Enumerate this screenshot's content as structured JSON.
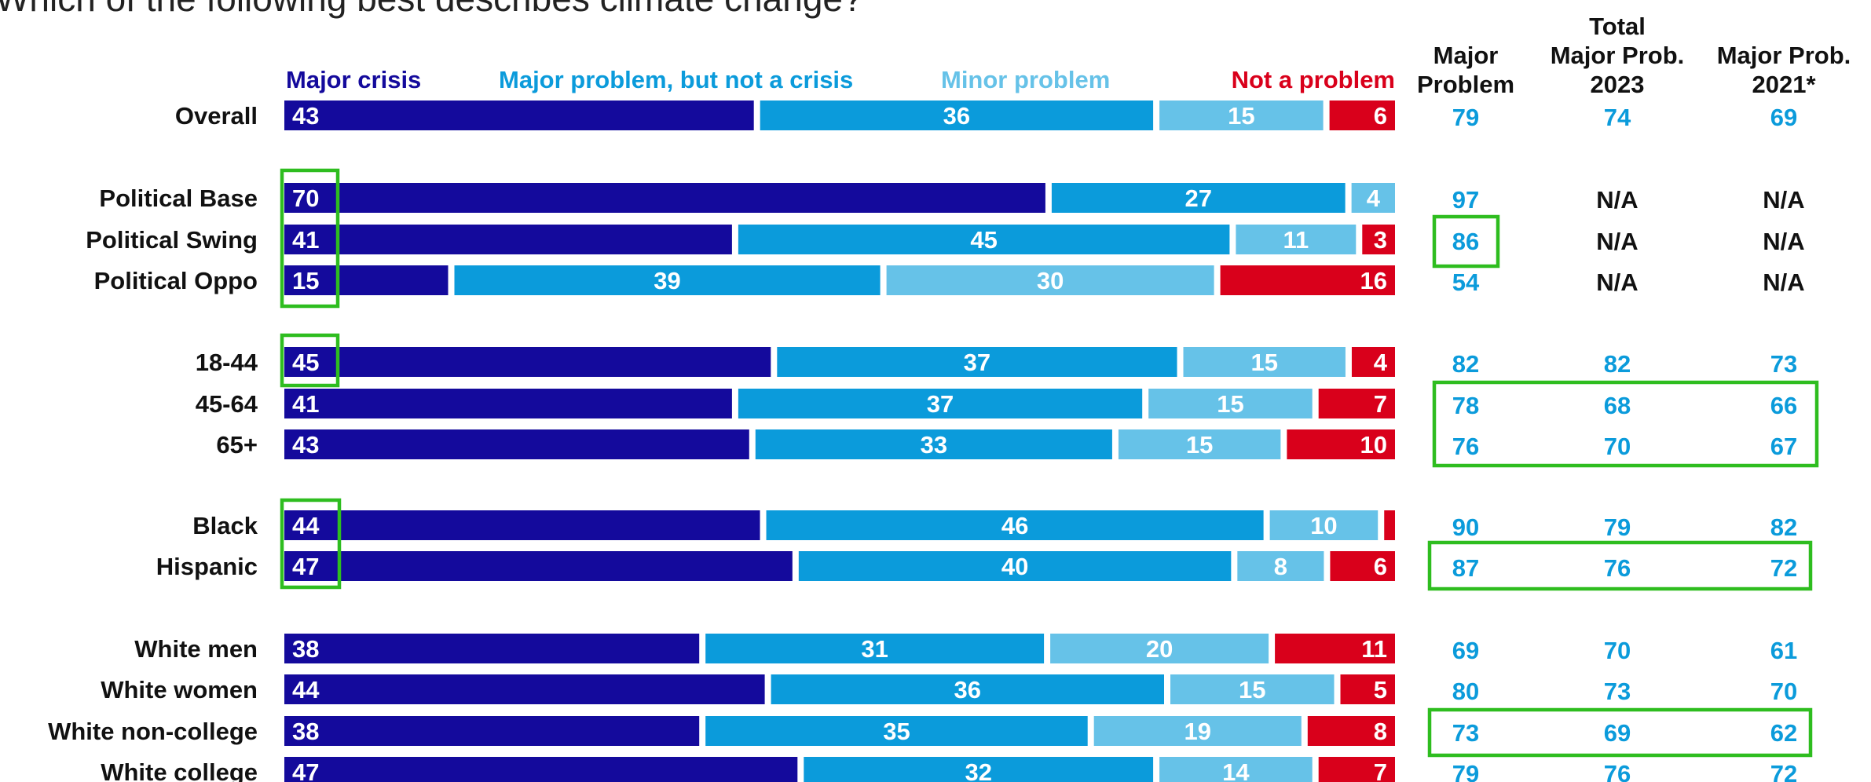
{
  "question": "Which of the following best describes climate change?",
  "colors": {
    "major_crisis": "#140a9c",
    "major_problem": "#0b9bdb",
    "minor_problem": "#66c2e8",
    "not_a_problem": "#d9001b",
    "column_value": "#0b9bdb",
    "na_value": "#111111",
    "highlight": "#2ebd1f"
  },
  "chart_data": {
    "type": "bar",
    "orientation": "horizontal",
    "stacked": true,
    "percent": true,
    "title": "Which of the following best describes climate change?",
    "legend_placement": "top",
    "grid": false,
    "categories": [
      "Overall",
      "Political Base",
      "Political Swing",
      "Political Oppo",
      "18-44",
      "45-64",
      "65+",
      "Black",
      "Hispanic",
      "White men",
      "White women",
      "White non-college",
      "White college"
    ],
    "groups": [
      0,
      1,
      1,
      1,
      2,
      2,
      2,
      3,
      3,
      4,
      4,
      4,
      4
    ],
    "series": [
      {
        "name": "Major crisis",
        "values": [
          43,
          70,
          41,
          15,
          45,
          41,
          43,
          44,
          47,
          38,
          44,
          38,
          47
        ]
      },
      {
        "name": "Major problem, but not a crisis",
        "values": [
          36,
          27,
          45,
          39,
          37,
          37,
          33,
          46,
          40,
          31,
          36,
          35,
          32
        ]
      },
      {
        "name": "Minor problem",
        "values": [
          15,
          4,
          11,
          30,
          15,
          15,
          15,
          10,
          8,
          20,
          15,
          19,
          14
        ]
      },
      {
        "name": "Not a problem",
        "values": [
          6,
          0,
          3,
          16,
          4,
          7,
          10,
          1,
          6,
          11,
          5,
          8,
          7
        ]
      }
    ],
    "series_labels": [
      [
        "43",
        "70",
        "41",
        "15",
        "45",
        "41",
        "43",
        "44",
        "47",
        "38",
        "44",
        "38",
        "47"
      ],
      [
        "36",
        "27",
        "45",
        "39",
        "37",
        "37",
        "33",
        "46",
        "40",
        "31",
        "36",
        "35",
        "32"
      ],
      [
        "15",
        "4",
        "11",
        "30",
        "15",
        "15",
        "15",
        "10",
        "8",
        "20",
        "15",
        "19",
        "14"
      ],
      [
        "6",
        "",
        "3",
        "16",
        "4",
        "7",
        "10",
        "",
        "6",
        "11",
        "5",
        "8",
        "7"
      ]
    ],
    "columns": [
      {
        "header_lines": [
          "Major",
          "Problem"
        ],
        "values": [
          "79",
          "97",
          "86",
          "54",
          "82",
          "78",
          "76",
          "90",
          "87",
          "69",
          "80",
          "73",
          "79"
        ]
      },
      {
        "header_lines": [
          "Total",
          "Major Prob.",
          "2023"
        ],
        "values": [
          "74",
          "N/A",
          "N/A",
          "N/A",
          "82",
          "68",
          "70",
          "79",
          "76",
          "70",
          "73",
          "69",
          "76"
        ]
      },
      {
        "header_lines": [
          "Major Prob.",
          "2021*"
        ],
        "values": [
          "69",
          "N/A",
          "N/A",
          "N/A",
          "73",
          "66",
          "67",
          "82",
          "72",
          "61",
          "70",
          "62",
          "72"
        ]
      }
    ]
  }
}
